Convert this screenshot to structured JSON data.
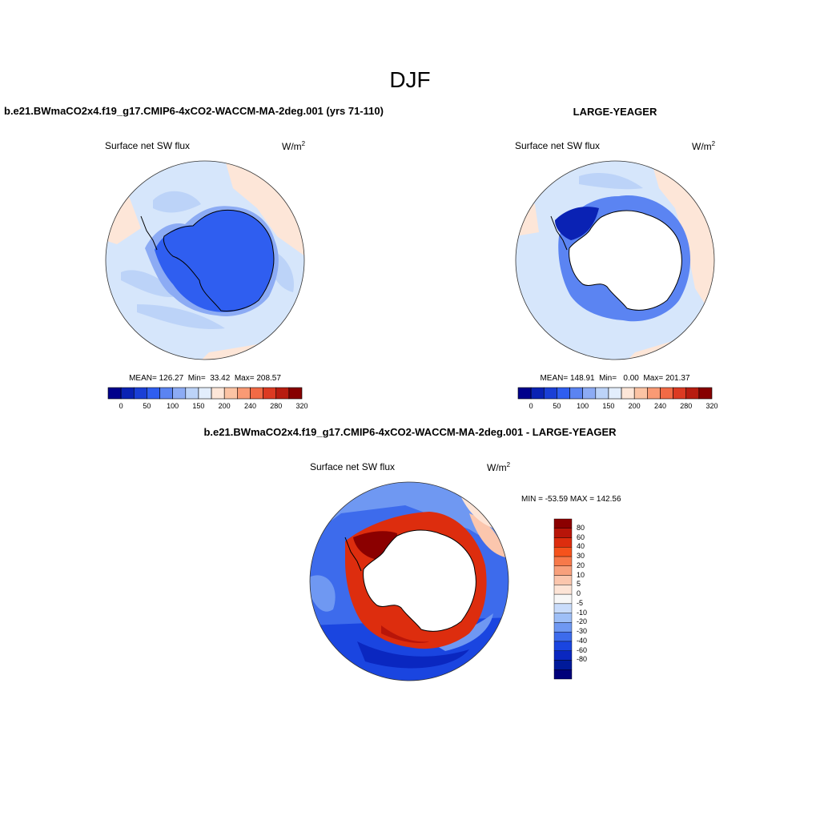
{
  "main_title": "DJF",
  "panel_a": {
    "title": "b.e21.BWmaCO2x4.f19_g17.CMIP6-4xCO2-WACCM-MA-2deg.001 (yrs 71-110)",
    "variable": "Surface net SW flux",
    "units_base": "W/m",
    "units_exp": "2",
    "stats": "MEAN= 126.27  Min=  33.42  Max= 208.57"
  },
  "panel_b": {
    "title": "LARGE-YEAGER",
    "variable": "Surface net SW flux",
    "units_base": "W/m",
    "units_exp": "2",
    "stats": "MEAN= 148.91  Min=   0.00  Max= 201.37"
  },
  "panel_c": {
    "title": "b.e21.BWmaCO2x4.f19_g17.CMIP6-4xCO2-WACCM-MA-2deg.001 - LARGE-YEAGER",
    "variable": "Surface net SW flux",
    "units_base": "W/m",
    "units_exp": "2",
    "minmax": "MIN = -53.59 MAX = 142.56"
  },
  "colorbar_abs": {
    "colors": [
      "#00008b",
      "#0a22b4",
      "#1a3fd6",
      "#2f5ef0",
      "#5b84f2",
      "#8cabf4",
      "#bcd3f8",
      "#e3eefc",
      "#fde6d8",
      "#fbc3a4",
      "#f99a74",
      "#f26a45",
      "#dc3a22",
      "#b71c10",
      "#870000"
    ],
    "labels": [
      "0",
      "50",
      "100",
      "150",
      "200",
      "240",
      "280",
      "320"
    ]
  },
  "colorbar_diff": {
    "colors": [
      "#8b0000",
      "#b81509",
      "#dd2d0e",
      "#f5521c",
      "#f7794a",
      "#f8a07c",
      "#fbc6ad",
      "#fde4d6",
      "#f7f7f7",
      "#c9dcfb",
      "#9ebff7",
      "#6f98f2",
      "#3d6bec",
      "#1a45e0",
      "#0a27c0",
      "#001a9a",
      "#00007a"
    ],
    "labels": [
      "80",
      "60",
      "40",
      "30",
      "20",
      "10",
      "5",
      "0",
      "-5",
      "-10",
      "-20",
      "-30",
      "-40",
      "-60",
      "-80"
    ]
  },
  "chart_data": {
    "type": "map",
    "season": "DJF",
    "projection": "south polar stereographic",
    "panels": [
      {
        "name": "b.e21.BWmaCO2x4.f19_g17.CMIP6-4xCO2-WACCM-MA-2deg.001 (yrs 71-110)",
        "mean": 126.27,
        "min": 33.42,
        "max": 208.57
      },
      {
        "name": "LARGE-YEAGER",
        "mean": 148.91,
        "min": 0.0,
        "max": 201.37
      },
      {
        "name": "b.e21.BWmaCO2x4.f19_g17.CMIP6-4xCO2-WACCM-MA-2deg.001 - LARGE-YEAGER",
        "min": -53.59,
        "max": 142.56
      }
    ]
  }
}
